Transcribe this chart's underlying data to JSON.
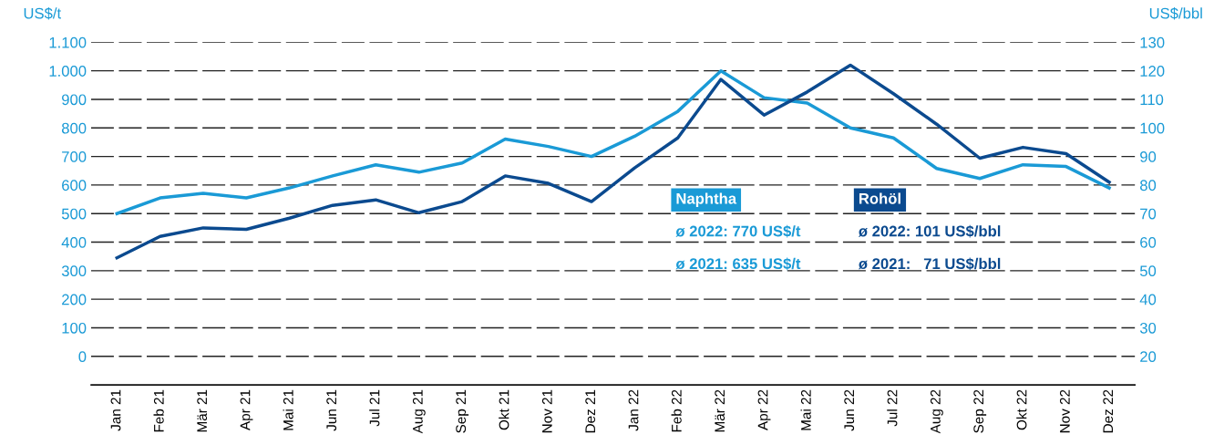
{
  "chart_data": {
    "type": "line",
    "categories": [
      "Jan 21",
      "Feb 21",
      "Mär 21",
      "Apr 21",
      "Mai 21",
      "Jun 21",
      "Jul 21",
      "Aug 21",
      "Sep 21",
      "Okt 21",
      "Nov 21",
      "Dez 21",
      "Jan 22",
      "Feb 22",
      "Mär 22",
      "Apr 22",
      "Mai 22",
      "Jun 22",
      "Jul 22",
      "Aug 22",
      "Sep 22",
      "Okt 22",
      "Nov 22",
      "Dez 22"
    ],
    "series": [
      {
        "name": "Naphtha",
        "color": "#1a9ad6",
        "values": [
          500,
          555,
          571,
          555,
          590,
          632,
          671,
          645,
          677,
          761,
          735,
          700,
          771,
          858,
          1000,
          906,
          887,
          800,
          765,
          658,
          623,
          671,
          665,
          590
        ]
      },
      {
        "name": "Rohöl",
        "color": "#0b4a8f",
        "axis": "y2",
        "values": [
          54.5,
          62,
          65,
          64.5,
          68.4,
          72.9,
          74.8,
          70.3,
          74.2,
          83.2,
          80.6,
          74.2,
          86,
          96.5,
          117,
          104.5,
          112.6,
          122,
          112,
          101.3,
          89.4,
          93.2,
          91,
          81
        ]
      }
    ],
    "ylabel": "US$/t",
    "y2label": "US$/bbl",
    "ylim": [
      -100,
      1100
    ],
    "yticks": [
      {
        "value": 0,
        "label": "0"
      },
      {
        "value": 100,
        "label": "100"
      },
      {
        "value": 200,
        "label": "200"
      },
      {
        "value": 300,
        "label": "300"
      },
      {
        "value": 400,
        "label": "400"
      },
      {
        "value": 500,
        "label": "500"
      },
      {
        "value": 600,
        "label": "600"
      },
      {
        "value": 700,
        "label": "700"
      },
      {
        "value": 800,
        "label": "800"
      },
      {
        "value": 900,
        "label": "900"
      },
      {
        "value": 1000,
        "label": "1.000"
      },
      {
        "value": 1100,
        "label": "1.100"
      }
    ],
    "y2lim": [
      10,
      130
    ],
    "y2ticks": [
      20,
      30,
      40,
      50,
      60,
      70,
      80,
      90,
      100,
      110,
      120,
      130
    ],
    "grid": "y",
    "legend": "center right",
    "marker": "none",
    "line_style": "solid",
    "annotations": [
      "ø 2022: 770 US$/t",
      "ø 2021: 635 US$/t",
      "ø 2022: 101 US$/bbl",
      "ø 2021:   71 US$/bbl"
    ]
  }
}
